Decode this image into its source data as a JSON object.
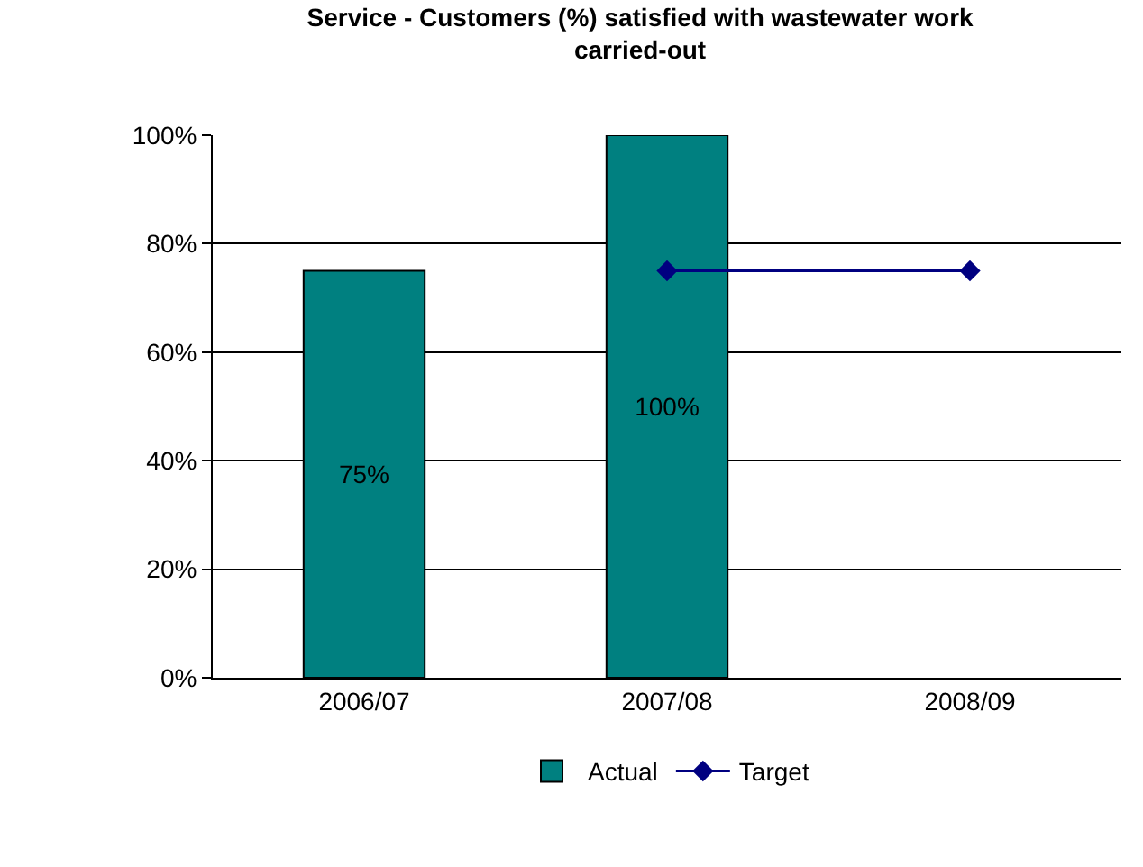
{
  "chart_data": {
    "type": "bar",
    "title": "Service - Customers (%) satisfied with wastewater work carried-out",
    "categories": [
      "2006/07",
      "2007/08",
      "2008/09"
    ],
    "series": [
      {
        "name": "Actual",
        "color": "#008080",
        "values": [
          75,
          100,
          null
        ],
        "value_labels": [
          "75%",
          "100%",
          null
        ]
      },
      {
        "name": "Target",
        "type": "line",
        "color": "#000080",
        "values": [
          null,
          75,
          75
        ],
        "marker": "diamond"
      }
    ],
    "ylim": [
      0,
      100
    ],
    "yticks": [
      {
        "value": 0,
        "label": "0%"
      },
      {
        "value": 20,
        "label": "20%"
      },
      {
        "value": 40,
        "label": "40%"
      },
      {
        "value": 60,
        "label": "60%"
      },
      {
        "value": 80,
        "label": "80%"
      },
      {
        "value": 100,
        "label": "100%"
      }
    ],
    "grid": "y",
    "legend": "bottom"
  }
}
